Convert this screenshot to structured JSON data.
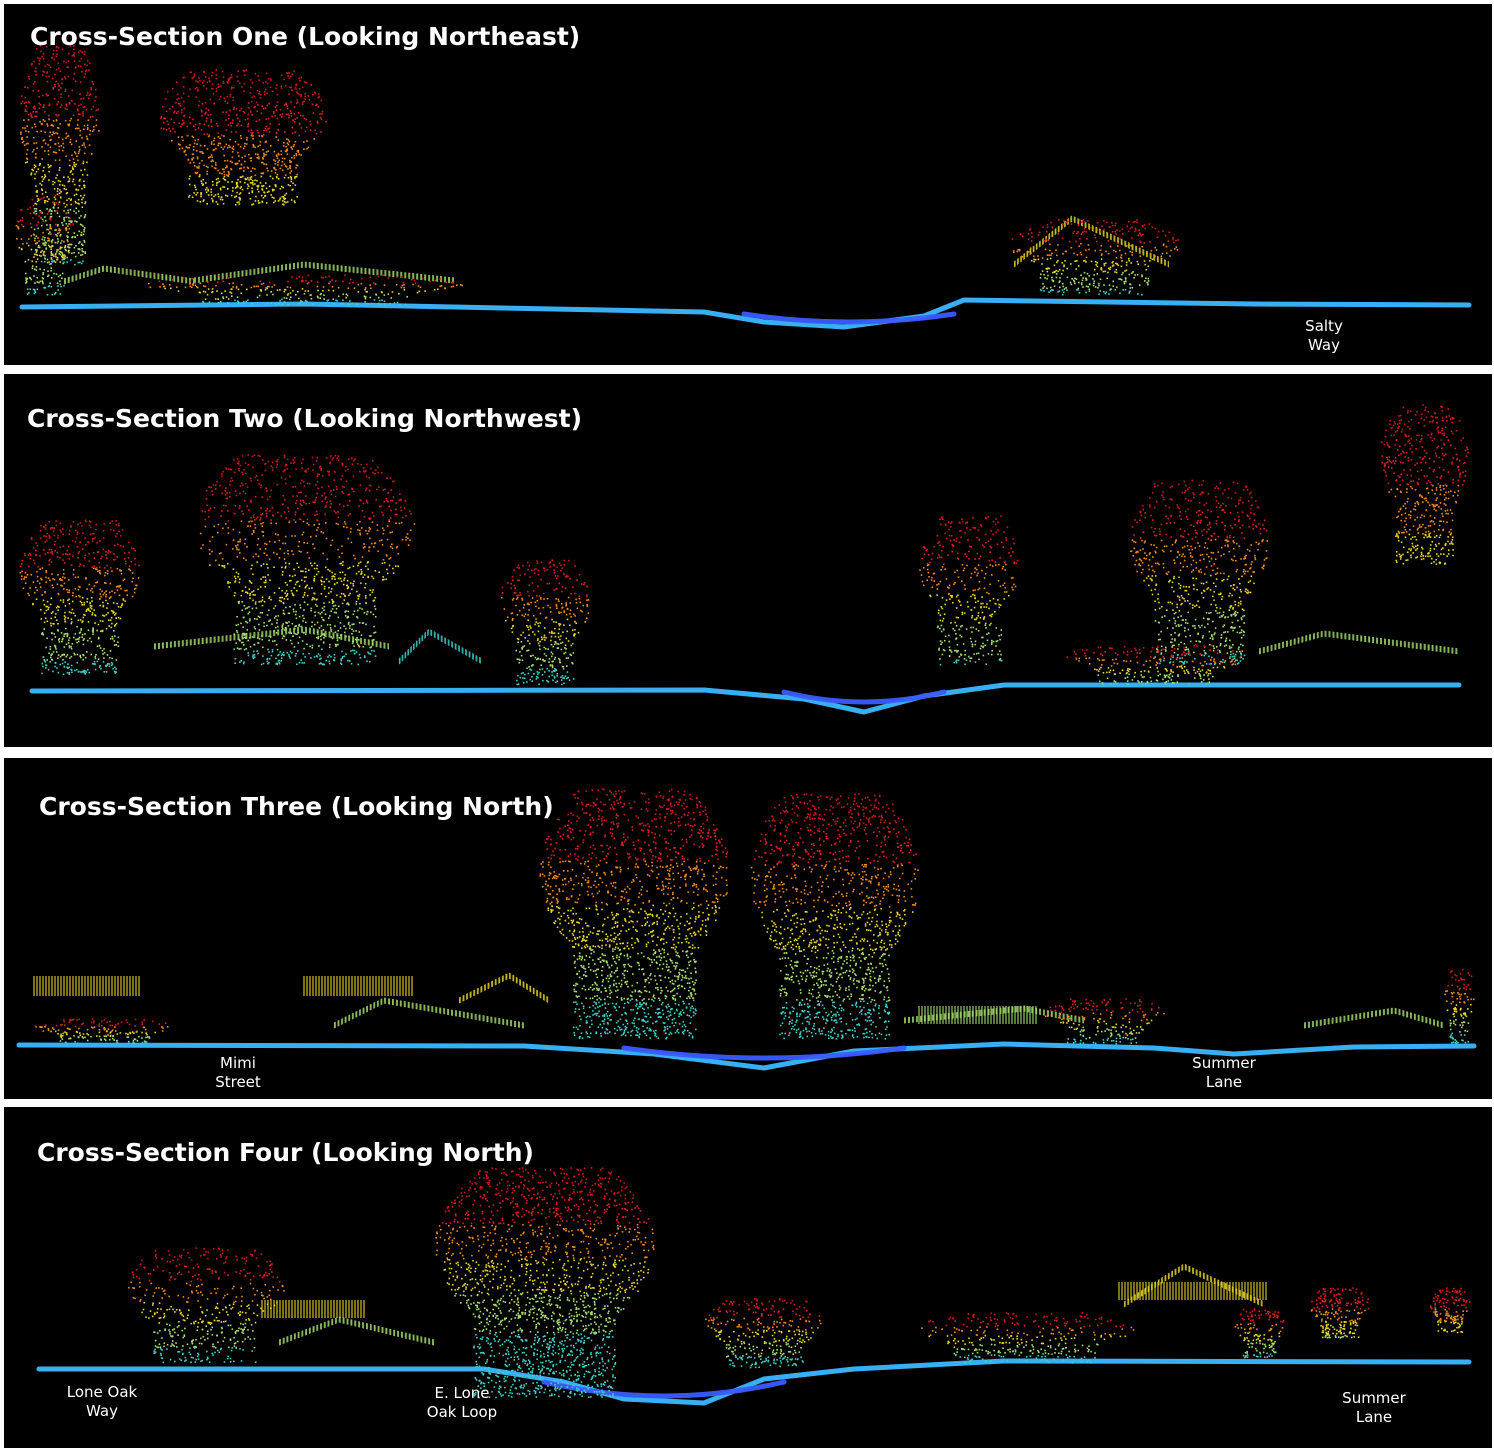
{
  "panels": [
    {
      "title": "Cross-Section One (Looking Northeast)",
      "labels": [
        {
          "line1": "Salty",
          "line2": "Way"
        }
      ]
    },
    {
      "title": "Cross-Section Two (Looking Northwest)",
      "labels": []
    },
    {
      "title": "Cross-Section Three (Looking North)",
      "labels": [
        {
          "line1": "Mimi",
          "line2": "Street"
        },
        {
          "line1": "Summer",
          "line2": "Lane"
        }
      ]
    },
    {
      "title": "Cross-Section Four (Looking North)",
      "labels": [
        {
          "line1": "Lone Oak",
          "line2": "Way"
        },
        {
          "line1": "E. Lone",
          "line2": "Oak Loop"
        },
        {
          "line1": "Summer",
          "line2": "Lane"
        }
      ]
    }
  ],
  "colors": {
    "ground": "#3ab8ff",
    "channel": "#3a5cff",
    "canopy_high": "#e02020",
    "canopy_mid": "#f08a1a",
    "canopy_low": "#e8d62a",
    "roof": "#a8e070",
    "understory": "#40d0c8"
  }
}
